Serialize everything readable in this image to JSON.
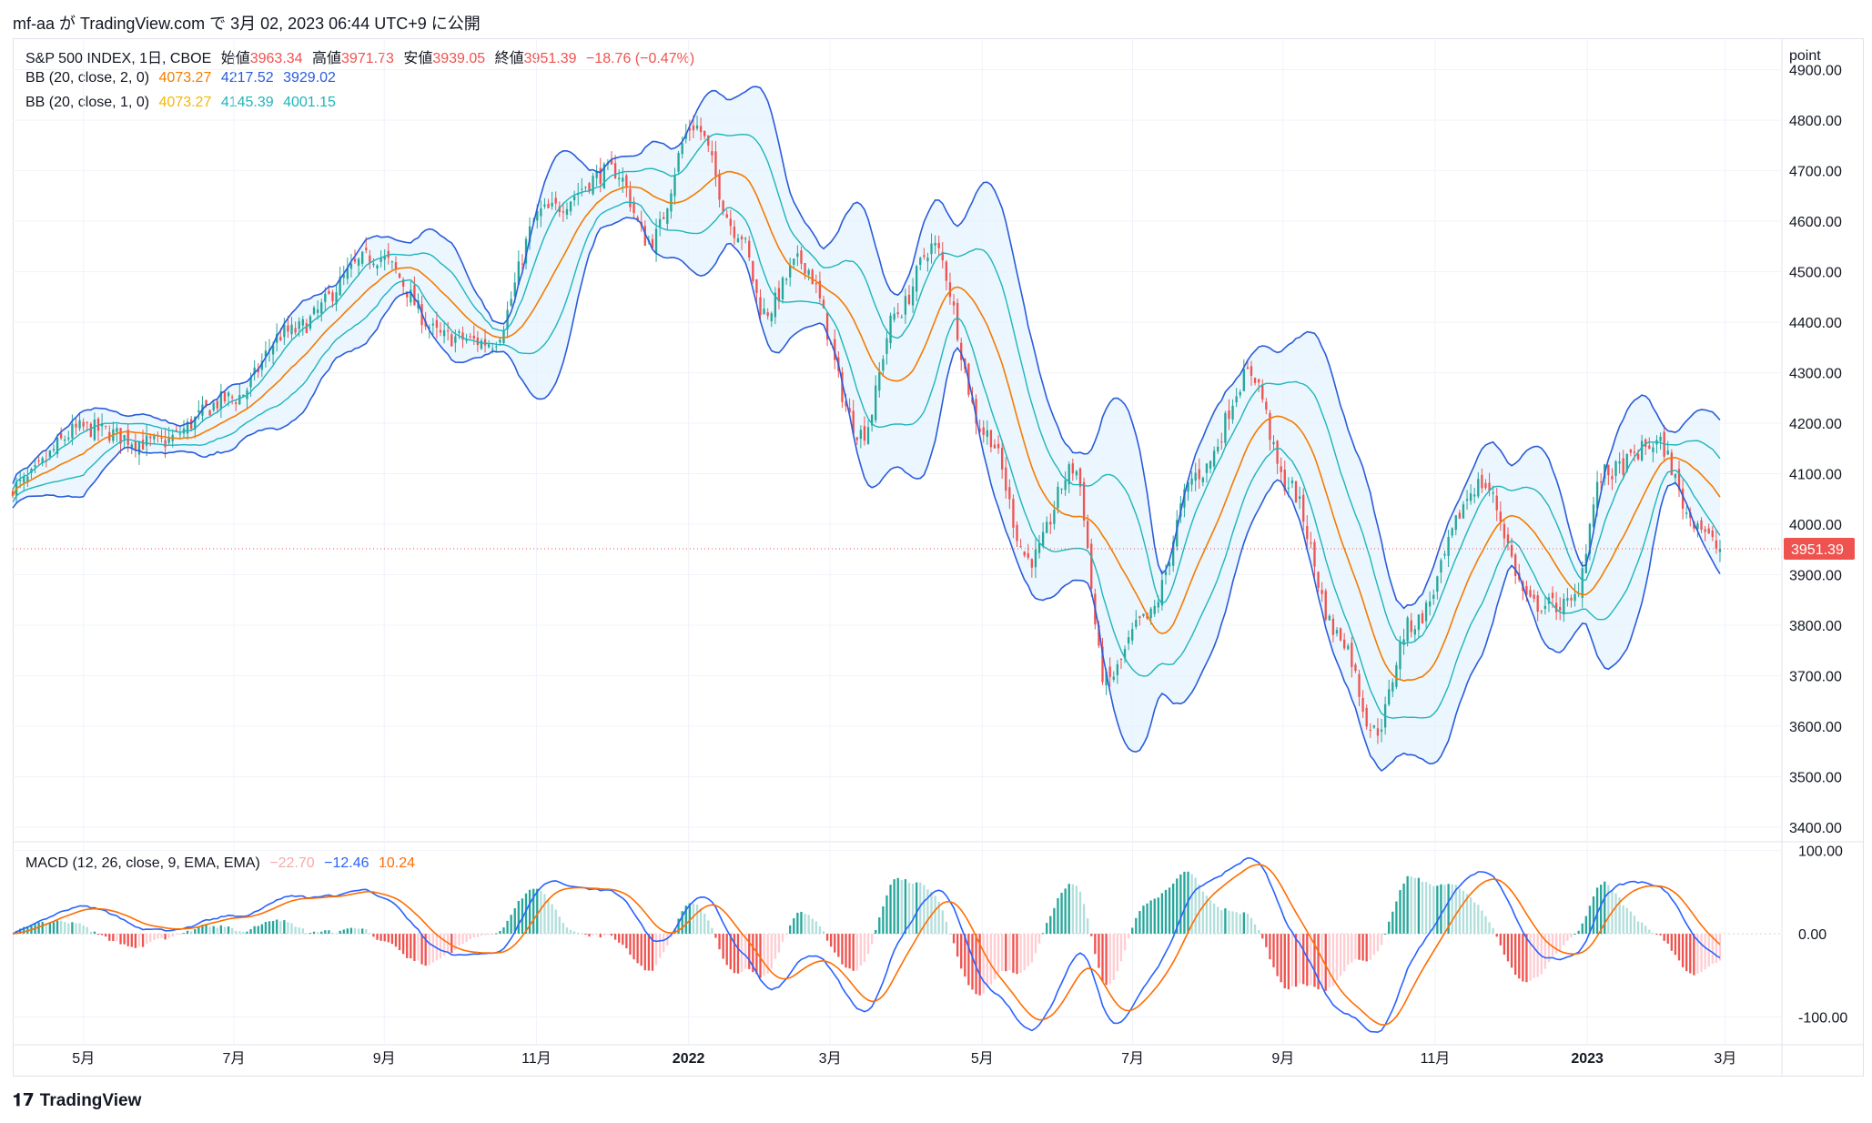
{
  "header": {
    "publish_line": "mf-aa が TradingView.com で 3月 02, 2023 06:44 UTC+9 に公開"
  },
  "symbol_legend": {
    "name": "S&P 500 INDEX, 1日, CBOE",
    "open_label": "始値",
    "open": "3963.34",
    "high_label": "高値",
    "high": "3971.73",
    "low_label": "安値",
    "low": "3939.05",
    "close_label": "終値",
    "close": "3951.39",
    "change": "−18.76 (−0.47%)"
  },
  "bb2_legend": {
    "label": "BB (20, close, 2, 0)",
    "basis": "4073.27",
    "upper": "4217.52",
    "lower": "3929.02"
  },
  "bb1_legend": {
    "label": "BB (20, close, 1, 0)",
    "basis": "4073.27",
    "upper": "4145.39",
    "lower": "4001.15"
  },
  "macd_legend": {
    "label": "MACD (12, 26, close, 9, EMA, EMA)",
    "hist": "−22.70",
    "macd": "−12.46",
    "signal": "10.24"
  },
  "price_axis": {
    "unit": "point",
    "last_price_label": "3951.39"
  },
  "footer": {
    "brand": "TradingView"
  },
  "colors": {
    "up": "#26a69a",
    "down": "#ef5350",
    "bb2": "#2a5cdb",
    "bb1": "#1fb5bb",
    "basis": "#f57c00",
    "macd": "#2962ff",
    "signal": "#ff6d00",
    "fill": "#e3f2fd"
  },
  "chart_data": [
    {
      "type": "candlestick",
      "title": "S&P 500 INDEX, 1日, CBOE",
      "ylabel": "point",
      "ylim": [
        3380,
        4930
      ],
      "ticks": [
        3400,
        3500,
        3600,
        3700,
        3800,
        3900,
        4000,
        4100,
        4200,
        4300,
        4400,
        4500,
        4600,
        4700,
        4800,
        4900
      ],
      "x_labels": [
        {
          "label": "5月",
          "t": 0.04
        },
        {
          "label": "7月",
          "t": 0.125
        },
        {
          "label": "9月",
          "t": 0.21
        },
        {
          "label": "11月",
          "t": 0.296
        },
        {
          "label": "2022",
          "t": 0.382
        },
        {
          "label": "3月",
          "t": 0.462
        },
        {
          "label": "5月",
          "t": 0.548
        },
        {
          "label": "7月",
          "t": 0.633
        },
        {
          "label": "9月",
          "t": 0.718
        },
        {
          "label": "11月",
          "t": 0.804
        },
        {
          "label": "2023",
          "t": 0.89
        },
        {
          "label": "3月",
          "t": 0.968
        }
      ],
      "last_close": 3951.39,
      "price_anchors": [
        [
          0,
          4075
        ],
        [
          0.04,
          4190
        ],
        [
          0.08,
          4160
        ],
        [
          0.125,
          4250
        ],
        [
          0.155,
          4380
        ],
        [
          0.205,
          4530
        ],
        [
          0.245,
          4370
        ],
        [
          0.27,
          4360
        ],
        [
          0.3,
          4620
        ],
        [
          0.34,
          4700
        ],
        [
          0.36,
          4560
        ],
        [
          0.385,
          4790
        ],
        [
          0.41,
          4580
        ],
        [
          0.425,
          4420
        ],
        [
          0.445,
          4520
        ],
        [
          0.48,
          4180
        ],
        [
          0.5,
          4420
        ],
        [
          0.52,
          4550
        ],
        [
          0.55,
          4180
        ],
        [
          0.575,
          3930
        ],
        [
          0.6,
          4110
        ],
        [
          0.618,
          3690
        ],
        [
          0.64,
          3810
        ],
        [
          0.67,
          4100
        ],
        [
          0.7,
          4300
        ],
        [
          0.72,
          4080
        ],
        [
          0.75,
          3780
        ],
        [
          0.77,
          3590
        ],
        [
          0.79,
          3800
        ],
        [
          0.83,
          4080
        ],
        [
          0.86,
          3840
        ],
        [
          0.88,
          3840
        ],
        [
          0.9,
          4100
        ],
        [
          0.93,
          4160
        ],
        [
          0.95,
          4010
        ],
        [
          0.965,
          3951.39
        ]
      ]
    },
    {
      "type": "line",
      "title": "MACD (12, 26, close, 9, EMA, EMA)",
      "ylim": [
        -130,
        105
      ],
      "ticks": [
        100,
        0,
        -100
      ],
      "series": [
        {
          "name": "macd",
          "values": "computed"
        },
        {
          "name": "signal",
          "values": "computed"
        },
        {
          "name": "histogram",
          "values": "computed"
        }
      ]
    }
  ]
}
